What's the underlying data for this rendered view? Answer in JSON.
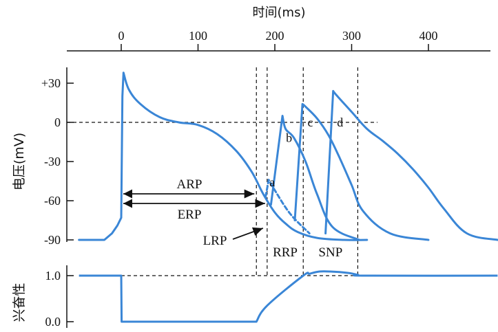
{
  "chart_data": [
    {
      "type": "line",
      "xlabel": "时间(ms)",
      "ylabel": "电压(mV)",
      "xlim": [
        -55,
        490
      ],
      "ylim": [
        -90,
        38
      ],
      "x_ticks": [
        "0",
        "100",
        "200",
        "300",
        "400"
      ],
      "x_tick_values": [
        0,
        100,
        200,
        300,
        400
      ],
      "y_ticks": [
        "+30",
        "0",
        "-30",
        "-60",
        "-90"
      ],
      "y_tick_values": [
        30,
        0,
        -30,
        -60,
        -90
      ],
      "line_color": "#3a86d6",
      "series": [
        {
          "label": "",
          "x": [
            -55,
            -22,
            -12,
            -5,
            0,
            1.5,
            3,
            10,
            25,
            50,
            75,
            100,
            125,
            150,
            170,
            185,
            200,
            215,
            230,
            255,
            290,
            320
          ],
          "y": [
            -90,
            -90,
            -85,
            -79,
            -73,
            20,
            38,
            25,
            14,
            4,
            0,
            -2,
            -9,
            -22,
            -38,
            -55,
            -69,
            -78,
            -84,
            -88.5,
            -90,
            -90
          ]
        },
        {
          "label": "a",
          "x": [
            188,
            192,
            200,
            220,
            245
          ],
          "y": [
            -57,
            -44,
            -52,
            -70,
            -85
          ]
        },
        {
          "label": "b",
          "x": [
            195,
            210,
            214,
            225,
            240,
            255,
            275,
            310
          ],
          "y": [
            -63,
            5,
            -5,
            -12,
            -30,
            -55,
            -80,
            -90
          ]
        },
        {
          "label": "c",
          "x": [
            226,
            236,
            240,
            255,
            270,
            285,
            300,
            315,
            350,
            400
          ],
          "y": [
            -75,
            14,
            12,
            3,
            -10,
            -28,
            -48,
            -68,
            -85,
            -90
          ]
        },
        {
          "label": "d",
          "x": [
            266,
            276,
            280,
            300,
            320,
            340,
            360,
            380,
            400,
            420,
            450,
            490
          ],
          "y": [
            -85,
            24,
            21,
            8,
            -5,
            -14,
            -24,
            -36,
            -50,
            -66,
            -85,
            -90
          ]
        }
      ],
      "dashed_verticals_ms": [
        176,
        190,
        237,
        308
      ],
      "dashed_horizontal_mV": 0,
      "annotations": [
        {
          "text": "ARP",
          "range_ms": [
            0,
            176
          ],
          "kind": "double-arrow"
        },
        {
          "text": "ERP",
          "range_ms": [
            0,
            190
          ],
          "kind": "double-arrow"
        },
        {
          "text": "LRP",
          "at_ms": 190,
          "kind": "pointer-arrow"
        },
        {
          "text": "a",
          "at_ms": 192
        },
        {
          "text": "b",
          "at_ms": 214
        },
        {
          "text": "c",
          "at_ms": 248
        },
        {
          "text": "d",
          "at_ms": 285
        }
      ]
    },
    {
      "type": "line",
      "ylabel": "兴奋性",
      "y_ticks": [
        "1.0",
        "0.0"
      ],
      "y_tick_values": [
        1.0,
        0.0
      ],
      "series": [
        {
          "label": "",
          "x": [
            -55,
            0,
            0.5,
            176,
            190,
            237,
            245,
            258,
            272,
            295,
            308,
            320,
            490
          ],
          "y": [
            1.0,
            1.0,
            0.0,
            0.0,
            0.35,
            1.0,
            1.04,
            1.09,
            1.09,
            1.06,
            1.02,
            1.0,
            1.0
          ]
        }
      ],
      "dashed_reference_y": 1.0,
      "period_labels": [
        {
          "text": "RRP",
          "range_ms": [
            190,
            237
          ]
        },
        {
          "text": "SNP",
          "range_ms": [
            237,
            308
          ]
        }
      ]
    }
  ]
}
